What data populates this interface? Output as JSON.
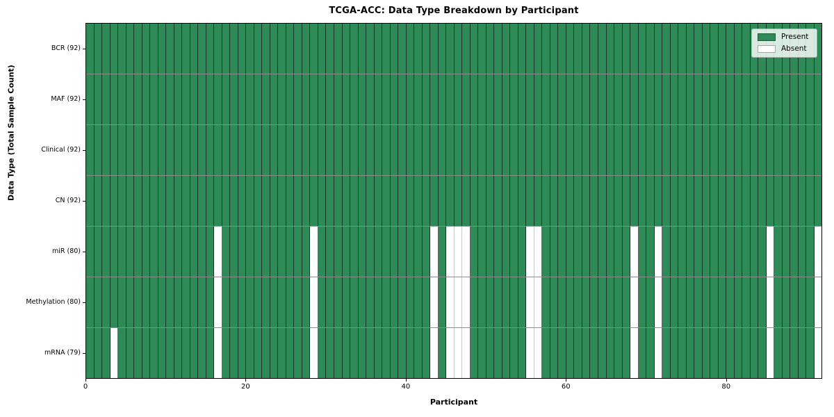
{
  "chart_data": {
    "type": "heatmap",
    "title": "TCGA-ACC: Data Type Breakdown by Participant",
    "xlabel": "Participant",
    "ylabel": "Data Type (Total Sample Count)",
    "n_participants": 92,
    "x_range": [
      0,
      92
    ],
    "x_ticks": [
      0,
      20,
      40,
      60,
      80
    ],
    "grid": "off",
    "legend_position": "upper right",
    "legend_items": [
      {
        "label": "Present",
        "color": "#2E8B57"
      },
      {
        "label": "Absent",
        "color": "#FFFFFF"
      }
    ],
    "colors": {
      "present": "#2E8B57",
      "absent": "#FFFFFF",
      "cell_edge_dark": "rgba(0,0,0,0.6)",
      "cell_edge_light": "rgba(0,0,0,0.22)",
      "frame": "#000000"
    },
    "rows": [
      {
        "label": "BCR (92)",
        "data_type": "BCR",
        "present_count": 92,
        "absent_participants": []
      },
      {
        "label": "MAF (92)",
        "data_type": "MAF",
        "present_count": 92,
        "absent_participants": []
      },
      {
        "label": "Clinical (92)",
        "data_type": "Clinical",
        "present_count": 92,
        "absent_participants": []
      },
      {
        "label": "CN (92)",
        "data_type": "CN",
        "present_count": 92,
        "absent_participants": []
      },
      {
        "label": "miR (80)",
        "data_type": "miR",
        "present_count": 80,
        "absent_participants": [
          16,
          28,
          43,
          45,
          46,
          47,
          55,
          56,
          68,
          71,
          85,
          91
        ]
      },
      {
        "label": "Methylation (80)",
        "data_type": "Methylation",
        "present_count": 80,
        "absent_participants": [
          16,
          28,
          43,
          45,
          46,
          47,
          55,
          56,
          68,
          71,
          85,
          91
        ]
      },
      {
        "label": "mRNA (79)",
        "data_type": "mRNA",
        "present_count": 79,
        "absent_participants": [
          3,
          16,
          28,
          43,
          45,
          46,
          47,
          55,
          56,
          68,
          71,
          85,
          91
        ]
      }
    ]
  }
}
